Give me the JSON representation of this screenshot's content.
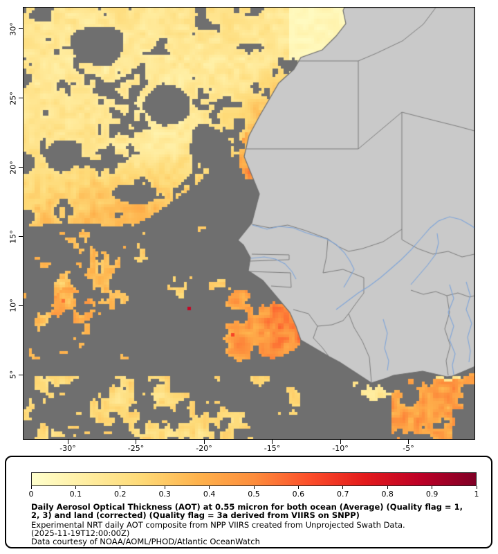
{
  "figure": {
    "background": "#ffffff"
  },
  "map": {
    "xticks": [
      "-30°",
      "-25°",
      "-20°",
      "-15°",
      "-10°",
      "-5°"
    ],
    "yticks": [
      "30°",
      "25°",
      "20°",
      "15°",
      "10°",
      "5°"
    ],
    "colors": {
      "missing_data": "#6f6f6f",
      "land": "#c9c9c9",
      "coastline": "#6e6e6e",
      "country_border": "#7d7d7d",
      "river": "#7fa5d9",
      "frame": "#000000"
    },
    "extent": {
      "lon_min": -33.25,
      "lon_max": -0.15,
      "lat_min": 0.35,
      "lat_max": 31.55
    }
  },
  "colorbar": {
    "min": 0,
    "max": 1,
    "ticks": [
      "0",
      "0.1",
      "0.2",
      "0.3",
      "0.4",
      "0.5",
      "0.6",
      "0.7",
      "0.8",
      "0.9",
      "1"
    ],
    "stops": [
      {
        "v": 0.0,
        "c": "#ffffcc"
      },
      {
        "v": 0.125,
        "c": "#ffeda0"
      },
      {
        "v": 0.25,
        "c": "#fed976"
      },
      {
        "v": 0.375,
        "c": "#feb24c"
      },
      {
        "v": 0.5,
        "c": "#fd8d3c"
      },
      {
        "v": 0.625,
        "c": "#fc4e2a"
      },
      {
        "v": 0.75,
        "c": "#e31a1c"
      },
      {
        "v": 0.875,
        "c": "#bd0026"
      },
      {
        "v": 1.0,
        "c": "#800026"
      }
    ]
  },
  "caption": {
    "lines": [
      "Daily Aerosol Optical Thickness (AOT) at 0.55 micron for both ocean (Average) (Quality flag = 1,",
      "2, 3) and land (corrected) (Quality flag = 3a derived from VIIRS on SNPP)",
      "Experimental NRT daily AOT composite from NPP VIIRS created from Unprojected Swath Data.",
      "(2025-11-19T12:00:00Z)",
      "Data courtesy of NOAA/AOML/PHOD/Atlantic OceanWatch"
    ]
  },
  "chart_data": {
    "type": "heatmap",
    "title": "Daily Aerosol Optical Thickness (AOT) at 0.55 micron for both ocean (Average) (Quality flag = 1, 2, 3) and land (corrected) (Quality flag = 3a derived from VIIRS on SNPP)",
    "subtitle": "Experimental NRT daily AOT composite from NPP VIIRS created from Unprojected Swath Data. (2025-11-19T12:00:00Z)",
    "source": "Data courtesy of NOAA/AOML/PHOD/Atlantic OceanWatch",
    "xlabel": "",
    "ylabel": "",
    "x_range": [
      -33.25,
      -0.15
    ],
    "y_range": [
      0.35,
      31.55
    ],
    "x_ticks": [
      -30,
      -25,
      -20,
      -15,
      -10,
      -5
    ],
    "y_ticks": [
      30,
      25,
      20,
      15,
      10,
      5
    ],
    "grid": false,
    "legend_position": "bottom-colorbar",
    "colorbar_range": [
      0,
      1
    ],
    "colorbar_ticks": [
      0,
      0.1,
      0.2,
      0.3,
      0.4,
      0.5,
      0.6,
      0.7,
      0.8,
      0.9,
      1
    ],
    "colormap": "yellow-orange-red (YlOrRd-style)",
    "regions": [
      {
        "area": "NE Atlantic off Morocco / Western Sahara / Mauritania (18-31N, 33-15W)",
        "coverage": "dense",
        "aot_range": [
          0.05,
          0.3
        ],
        "appearance": "large pale-yellow dust plume with gray retrieval gaps"
      },
      {
        "area": "Off Morocco coast (26-31N, 13-16W)",
        "coverage": "dense",
        "aot_range": [
          0.0,
          0.1
        ],
        "appearance": "near-white AOT minimum"
      },
      {
        "area": "Mauritania coast near Cape Blanc (19-22N, 16-17.5W)",
        "coverage": "patchy",
        "aot_range": [
          0.3,
          0.55
        ],
        "appearance": "orange coastal strip"
      },
      {
        "area": "Central Atlantic west column (5-15N, 25-33W)",
        "coverage": "sparse",
        "aot_range": [
          0.15,
          0.5
        ],
        "appearance": "scattered yellow-orange patches, isolated near-1.0 dark-red pixel around 9N 21W"
      },
      {
        "area": "Off Guinea / Sierra Leone (7-13N, 14-20W)",
        "coverage": "moderate",
        "aot_range": [
          0.25,
          0.6
        ],
        "appearance": "orange plume reaching the coast"
      },
      {
        "area": "Southern edge (0-4N, 13-33W)",
        "coverage": "sparse",
        "aot_range": [
          0.1,
          0.3
        ],
        "appearance": "scattered pale-yellow patches"
      },
      {
        "area": "Gulf of Guinea off Ivory Coast / Ghana (0-5N, 0-7W)",
        "coverage": "moderate",
        "aot_range": [
          0.2,
          0.5
        ],
        "appearance": "orange patches with pale strip along the coast"
      },
      {
        "area": "Remaining ocean",
        "coverage": "none",
        "appearance": "uniform gray = no retrieval"
      },
      {
        "area": "West Africa land",
        "coverage": "none",
        "appearance": "light-gray basemap with country borders and blue rivers"
      }
    ]
  }
}
